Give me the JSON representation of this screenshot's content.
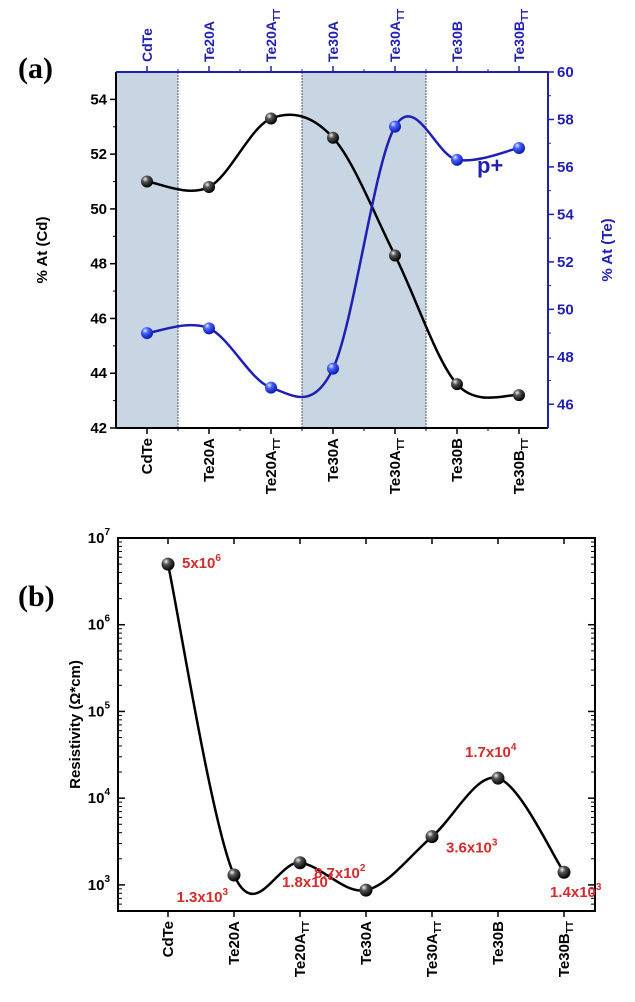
{
  "colors": {
    "cd_series": "#000000",
    "te_series": "#1f1fb4",
    "shade": "#c8d5e3",
    "annotation": "#d42a2a"
  },
  "chart_data": [
    {
      "panel": "(a)",
      "type": "line",
      "categories": [
        "CdTe",
        "Te20A",
        "Te20A",
        "Te30A",
        "Te30A",
        "Te30B",
        "Te30B"
      ],
      "category_subscripts": [
        "",
        "",
        "TT",
        "",
        "TT",
        "",
        "TT"
      ],
      "ylabel": "% At (Cd)",
      "ylabel_right": "% At (Te)",
      "ylim": [
        42,
        55
      ],
      "ylim_right": [
        45,
        60
      ],
      "yticks": [
        42,
        44,
        46,
        48,
        50,
        52,
        54
      ],
      "yticks_right": [
        46,
        48,
        50,
        52,
        54,
        56,
        58,
        60
      ],
      "shaded_category_ranges": [
        [
          0,
          0
        ],
        [
          3,
          4
        ]
      ],
      "series": [
        {
          "name": "Cd",
          "axis": "left",
          "color": "#000000",
          "values": [
            51.0,
            50.8,
            53.3,
            52.6,
            48.3,
            43.6,
            43.2
          ]
        },
        {
          "name": "Te",
          "axis": "right",
          "color": "#1f1fb4",
          "values": [
            49.0,
            49.2,
            46.7,
            47.5,
            57.7,
            56.3,
            56.8
          ]
        }
      ],
      "annotations": [
        {
          "text": "p+",
          "near_category": 5,
          "series": "Te"
        }
      ]
    },
    {
      "panel": "(b)",
      "type": "line",
      "yscale": "log",
      "categories": [
        "CdTe",
        "Te20A",
        "Te20A",
        "Te30A",
        "Te30A",
        "Te30B",
        "Te30B"
      ],
      "category_subscripts": [
        "",
        "",
        "TT",
        "",
        "TT",
        "",
        "TT"
      ],
      "ylabel": "Resistivity (Ω*cm)",
      "ylim": [
        500,
        10000000
      ],
      "yticks_exponents": [
        3,
        4,
        5,
        6,
        7
      ],
      "series": [
        {
          "name": "Resistivity",
          "color": "#000000",
          "values": [
            5000000,
            1300,
            1800,
            870,
            3600,
            17000,
            1400
          ]
        }
      ],
      "data_labels": [
        {
          "mantissa": "5x10",
          "exp": "6"
        },
        {
          "mantissa": "1.3x10",
          "exp": "3"
        },
        {
          "mantissa": "1.8x10",
          "exp": "3"
        },
        {
          "mantissa": "8.7x10",
          "exp": "2"
        },
        {
          "mantissa": "3.6x10",
          "exp": "3"
        },
        {
          "mantissa": "1.7x10",
          "exp": "4"
        },
        {
          "mantissa": "1.4x10",
          "exp": "3"
        }
      ]
    }
  ]
}
